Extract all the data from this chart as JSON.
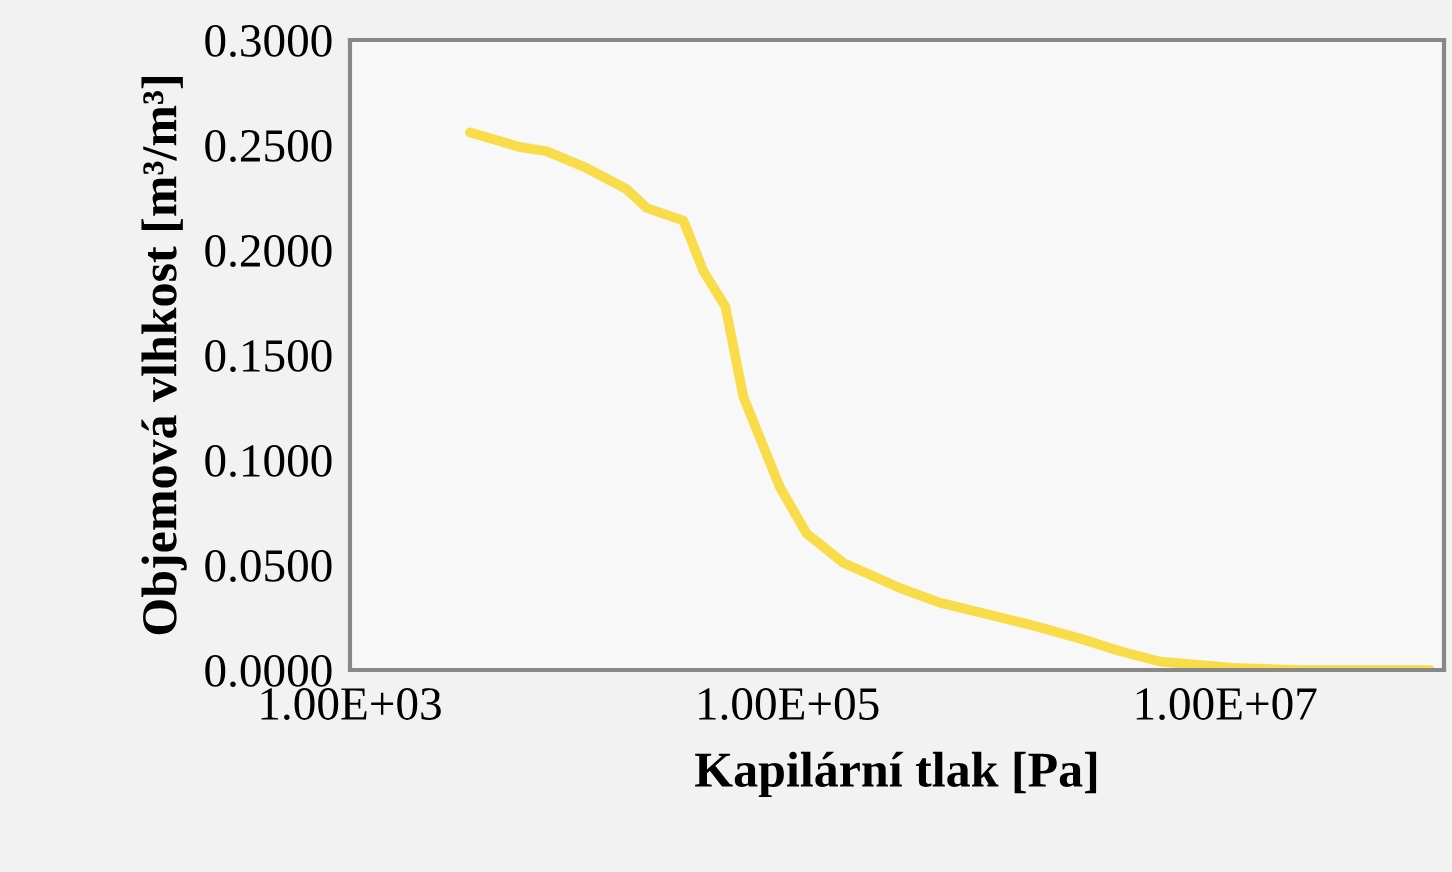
{
  "chart_data": {
    "type": "line",
    "xlabel": "Kapilární tlak [Pa]",
    "ylabel": "Objemová vlhkost [m³/m³]",
    "x": [
      3532,
      5984,
      7925,
      12080,
      18370,
      22700,
      33420,
      41210,
      52000,
      62810,
      92250,
      122200,
      179900,
      326600,
      497700,
      1236000,
      2168000,
      3304000,
      5035000,
      10890000,
      21980000,
      86300000
    ],
    "series": [
      {
        "color": "#f9dc4a",
        "values": [
          0.256,
          0.249,
          0.247,
          0.239,
          0.229,
          0.22,
          0.214,
          0.19,
          0.173,
          0.13,
          0.087,
          0.065,
          0.051,
          0.039,
          0.032,
          0.022,
          0.015,
          0.009,
          0.004,
          0.001,
          0.0,
          0.0
        ]
      }
    ],
    "log": "x",
    "xlim": [
      1000,
      100000000
    ],
    "xticks": [
      {
        "value": 1000,
        "label": "1.00E+03"
      },
      {
        "value": 100000,
        "label": "1.00E+05"
      },
      {
        "value": 10000000,
        "label": "1.00E+07"
      }
    ],
    "ylim": [
      0,
      0.3
    ],
    "yticks": [
      {
        "value": 0,
        "label": "0.0000"
      },
      {
        "value": 0.05,
        "label": "0.0500"
      },
      {
        "value": 0.1,
        "label": "0.1000"
      },
      {
        "value": 0.15,
        "label": "0.1500"
      },
      {
        "value": 0.2,
        "label": "0.2000"
      },
      {
        "value": 0.25,
        "label": "0.2500"
      },
      {
        "value": 0.3,
        "label": "0.3000"
      }
    ],
    "grid": false
  }
}
